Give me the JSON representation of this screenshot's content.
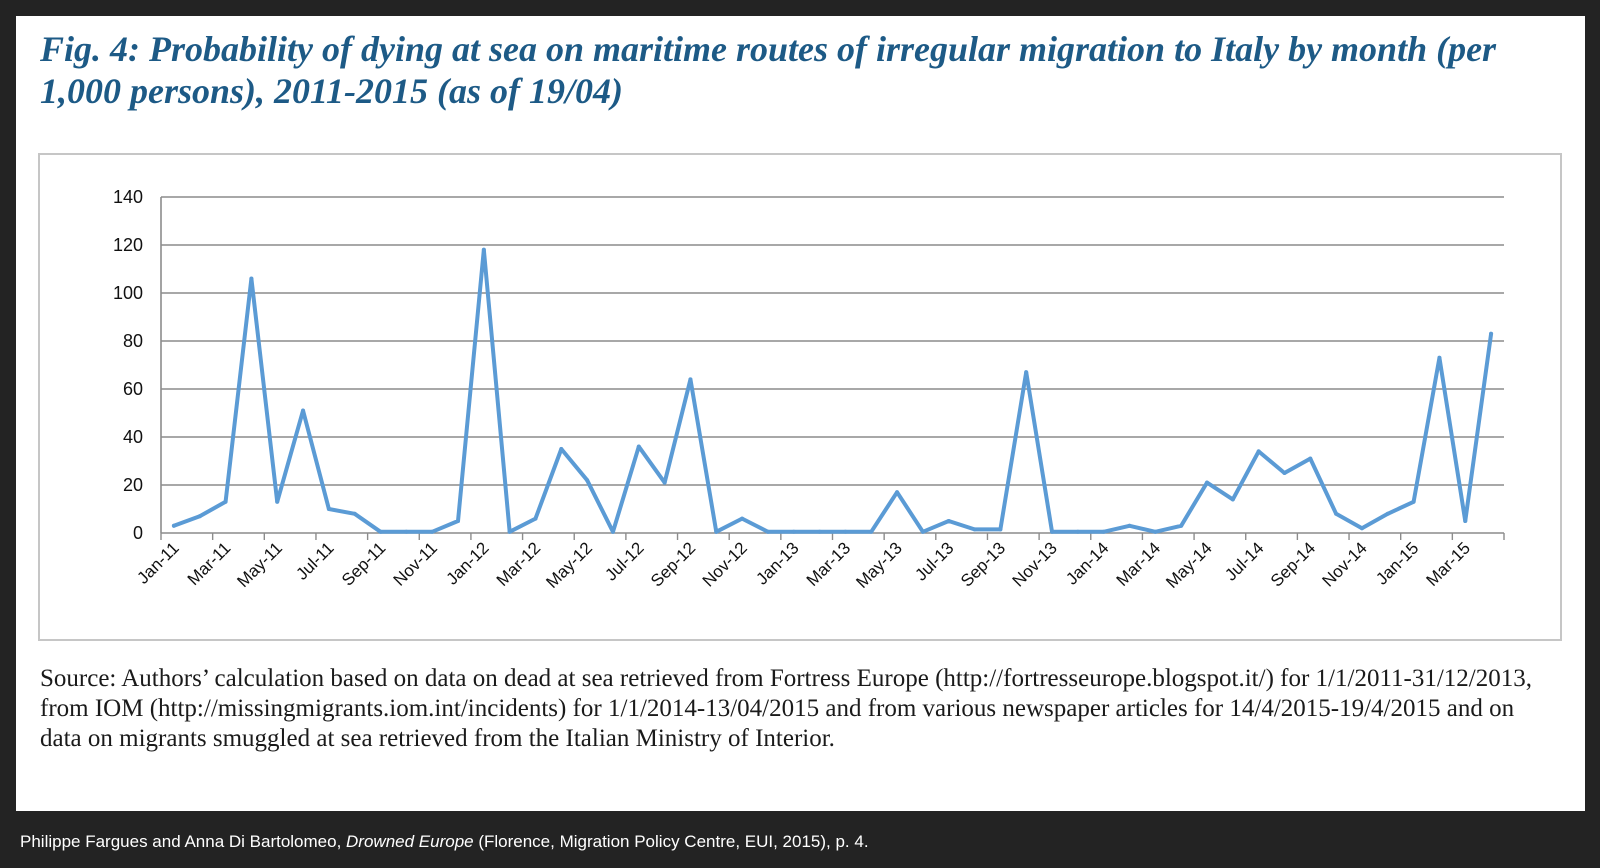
{
  "title": "Fig. 4: Probability of dying at sea on maritime routes of irregular migration to Italy by month (per 1,000 persons), 2011-2015 (as of 19/04)",
  "source_note": "Source: Authors’ calculation based on data on dead at sea retrieved from Fortress Europe (http://fortresseurope.blogspot.it/) for 1/1/2011-31/12/2013, from IOM (http://missingmigrants.iom.int/incidents) for 1/1/2014-13/04/2015 and from various newspaper articles for 14/4/2015-19/4/2015 and on data on migrants smuggled at sea retrieved from the Italian Ministry of Interior.",
  "citation": {
    "before": "Philippe Fargues and Anna Di Bartolomeo, ",
    "book": "Drowned Europe",
    "after": " (Florence, Migration Policy Centre, EUI, 2015), p. 4."
  },
  "colors": {
    "series_line": "#5b9bd5",
    "title": "#1d5a86",
    "gridline": "#8c8c8c",
    "background_outer": "#232323"
  },
  "chart_data": {
    "type": "line",
    "title": "",
    "xlabel": "",
    "ylabel": "",
    "ylim": [
      0,
      140
    ],
    "y_ticks": [
      0,
      20,
      40,
      60,
      80,
      100,
      120,
      140
    ],
    "grid": true,
    "legend": "none",
    "x_tick_labels": [
      "Jan-11",
      "Mar-11",
      "May-11",
      "Jul-11",
      "Sep-11",
      "Nov-11",
      "Jan-12",
      "Mar-12",
      "May-12",
      "Jul-12",
      "Sep-12",
      "Nov-12",
      "Jan-13",
      "Mar-13",
      "May-13",
      "Jul-13",
      "Sep-13",
      "Nov-13",
      "Jan-14",
      "Mar-14",
      "May-14",
      "Jul-14",
      "Sep-14",
      "Nov-14",
      "Jan-15",
      "Mar-15"
    ],
    "categories": [
      "Jan-11",
      "Feb-11",
      "Mar-11",
      "Apr-11",
      "May-11",
      "Jun-11",
      "Jul-11",
      "Aug-11",
      "Sep-11",
      "Oct-11",
      "Nov-11",
      "Dec-11",
      "Jan-12",
      "Feb-12",
      "Mar-12",
      "Apr-12",
      "May-12",
      "Jun-12",
      "Jul-12",
      "Aug-12",
      "Sep-12",
      "Oct-12",
      "Nov-12",
      "Dec-12",
      "Jan-13",
      "Feb-13",
      "Mar-13",
      "Apr-13",
      "May-13",
      "Jun-13",
      "Jul-13",
      "Aug-13",
      "Sep-13",
      "Oct-13",
      "Nov-13",
      "Dec-13",
      "Jan-14",
      "Feb-14",
      "Mar-14",
      "Apr-14",
      "May-14",
      "Jun-14",
      "Jul-14",
      "Aug-14",
      "Sep-14",
      "Oct-14",
      "Nov-14",
      "Dec-14",
      "Jan-15",
      "Feb-15",
      "Mar-15",
      "Apr-15"
    ],
    "series": [
      {
        "values": [
          3,
          7,
          13,
          106,
          13,
          51,
          10,
          8,
          0.5,
          0.5,
          0.5,
          5,
          118,
          0.5,
          6,
          35,
          22,
          0.5,
          36,
          21,
          64,
          0.5,
          6,
          0.5,
          0.5,
          0.5,
          0.5,
          0.5,
          17,
          0.5,
          5,
          1.5,
          1.5,
          67,
          0.5,
          0.5,
          0.5,
          3,
          0.5,
          3,
          21,
          14,
          34,
          25,
          31,
          8,
          2,
          8,
          13,
          73,
          5,
          83
        ]
      }
    ]
  }
}
